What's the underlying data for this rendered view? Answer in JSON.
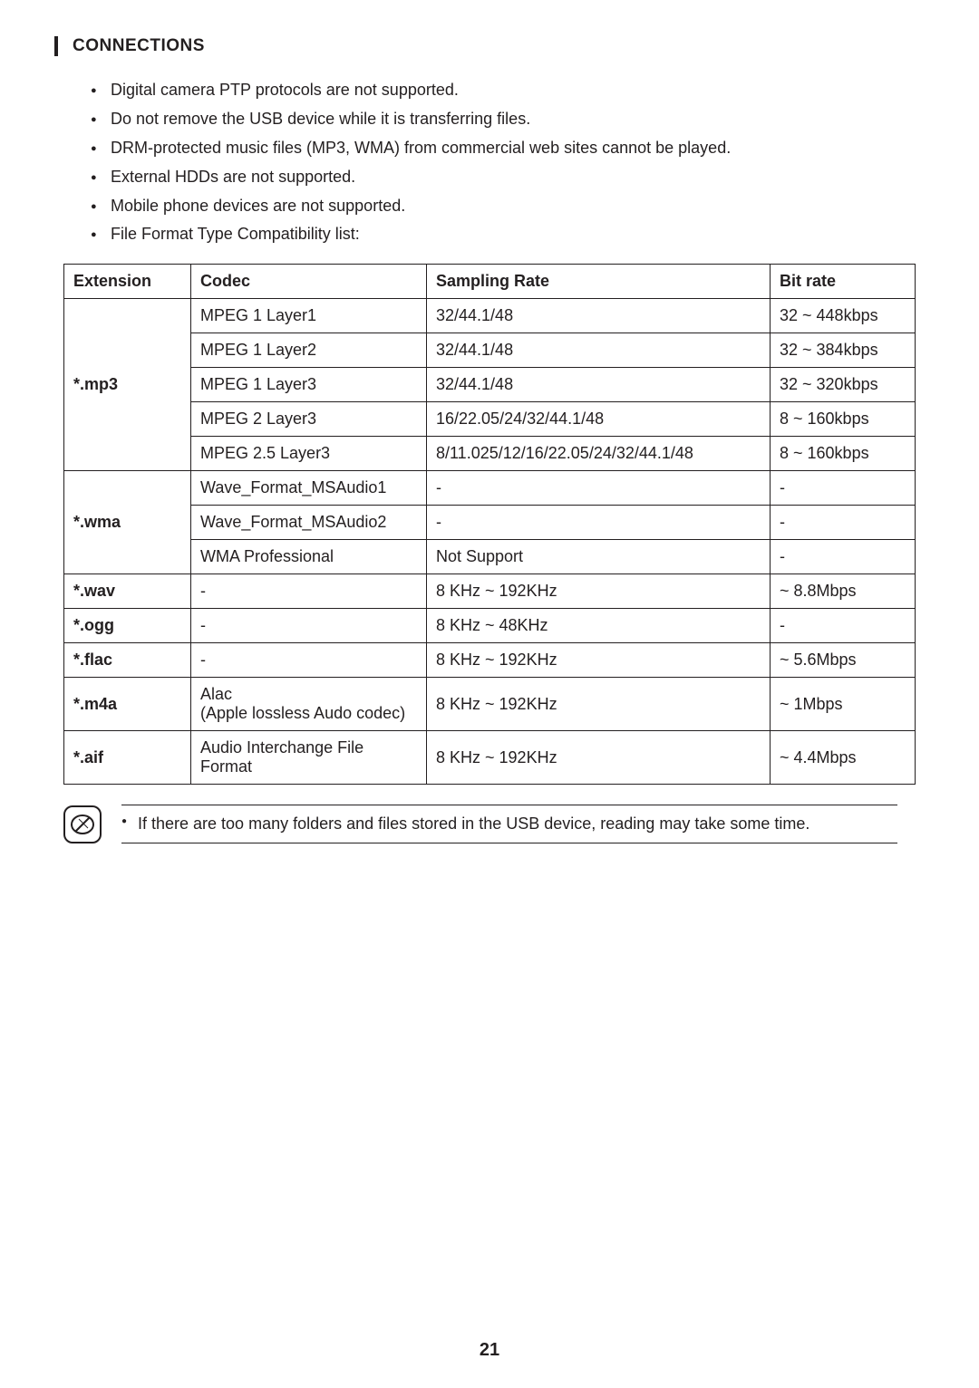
{
  "section_title": "CONNECTIONS",
  "bullets": [
    "Digital camera PTP protocols are not supported.",
    "Do not remove the USB device while it is transferring files.",
    "DRM-protected music files (MP3, WMA) from commercial web sites cannot be played.",
    "External HDDs are not supported.",
    "Mobile phone devices are not supported.",
    "File Format Type Compatibility list:"
  ],
  "table": {
    "headers": {
      "extension": "Extension",
      "codec": "Codec",
      "sampling_rate": "Sampling Rate",
      "bit_rate": "Bit rate"
    },
    "groups": [
      {
        "extension": "*.mp3",
        "rows": [
          {
            "codec": "MPEG 1 Layer1",
            "rate": "32/44.1/48",
            "bit": "32 ~ 448kbps"
          },
          {
            "codec": "MPEG 1 Layer2",
            "rate": "32/44.1/48",
            "bit": "32 ~ 384kbps"
          },
          {
            "codec": "MPEG 1 Layer3",
            "rate": "32/44.1/48",
            "bit": "32 ~ 320kbps"
          },
          {
            "codec": "MPEG 2 Layer3",
            "rate": "16/22.05/24/32/44.1/48",
            "bit": "8 ~ 160kbps"
          },
          {
            "codec": "MPEG 2.5 Layer3",
            "rate": "8/11.025/12/16/22.05/24/32/44.1/48",
            "bit": "8 ~ 160kbps"
          }
        ]
      },
      {
        "extension": "*.wma",
        "rows": [
          {
            "codec": "Wave_Format_MSAudio1",
            "rate": "-",
            "bit": "-"
          },
          {
            "codec": "Wave_Format_MSAudio2",
            "rate": "-",
            "bit": "-"
          },
          {
            "codec": "WMA Professional",
            "rate": "Not Support",
            "bit": "-"
          }
        ]
      },
      {
        "extension": "*.wav",
        "rows": [
          {
            "codec": "-",
            "rate": "8 KHz ~ 192KHz",
            "bit": "~ 8.8Mbps"
          }
        ]
      },
      {
        "extension": "*.ogg",
        "rows": [
          {
            "codec": "-",
            "rate": "8 KHz ~ 48KHz",
            "bit": "-"
          }
        ]
      },
      {
        "extension": "*.flac",
        "rows": [
          {
            "codec": "-",
            "rate": "8 KHz ~ 192KHz",
            "bit": "~ 5.6Mbps"
          }
        ]
      },
      {
        "extension": "*.m4a",
        "rows": [
          {
            "codec": "Alac\n(Apple lossless Audo codec)",
            "rate": "8 KHz ~ 192KHz",
            "bit": "~ 1Mbps"
          }
        ]
      },
      {
        "extension": "*.aif",
        "rows": [
          {
            "codec": "Audio Interchange File Format",
            "rate": "8 KHz ~ 192KHz",
            "bit": "~ 4.4Mbps"
          }
        ]
      }
    ]
  },
  "note": "If there are too many folders and files stored in the USB device, reading may take some time.",
  "page_number": "21",
  "colors": {
    "text": "#231f20",
    "border": "#231f20",
    "background": "#ffffff"
  }
}
